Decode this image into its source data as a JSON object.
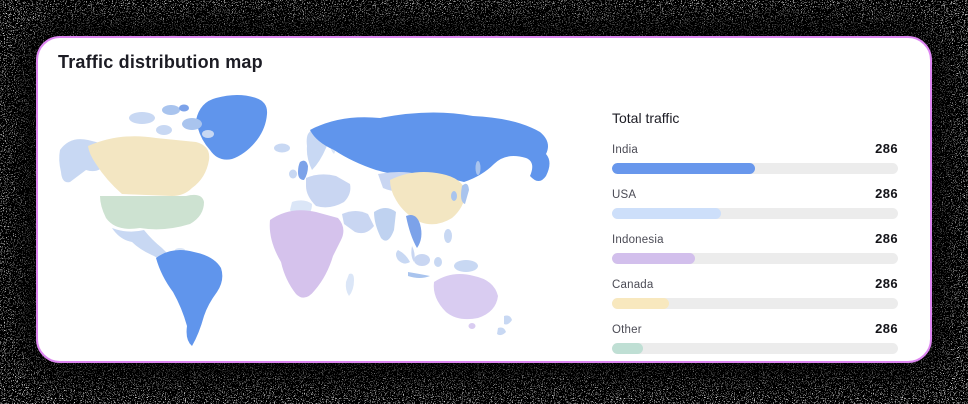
{
  "page": {
    "background": "#000000",
    "card_border": "#DD86F1"
  },
  "card": {
    "title": "Traffic distribution map"
  },
  "traffic": {
    "title": "Total traffic",
    "track_color": "#ECECEC",
    "rows": [
      {
        "label": "India",
        "value": "286",
        "percent": 50,
        "color": "#6897EC"
      },
      {
        "label": "USA",
        "value": "286",
        "percent": 38,
        "color": "#CDDFFA"
      },
      {
        "label": "Indonesia",
        "value": "286",
        "percent": 29,
        "color": "#D2BFEC"
      },
      {
        "label": "Canada",
        "value": "286",
        "percent": 20,
        "color": "#F8E8BE"
      },
      {
        "label": "Other",
        "value": "286",
        "percent": 11,
        "color": "#BFDFD4"
      }
    ]
  },
  "map": {
    "name": "world-traffic-choropleth",
    "region_colors": {
      "default": "#DBE6F7",
      "shade": "#C8D8F3",
      "mid": "#C9D6F2",
      "deep_shade": "#A9C4EE",
      "highlight_blue": "#6095EC",
      "highlight_soft": "#7CA2E9",
      "canada": "#F3E6C2",
      "usa": "#CDE2D1",
      "china": "#F3E6C2",
      "africa": "#D5C2EC",
      "australia": "#D9CCF1",
      "india": "#BFD2F0"
    }
  },
  "chart_data": {
    "type": "bar",
    "orientation": "horizontal",
    "title": "Total traffic",
    "categories": [
      "India",
      "USA",
      "Indonesia",
      "Canada",
      "Other"
    ],
    "values": [
      286,
      286,
      286,
      286,
      286
    ],
    "bar_fill_fractions": [
      0.5,
      0.38,
      0.29,
      0.2,
      0.11
    ],
    "bar_colors": [
      "#6897EC",
      "#CDDFFA",
      "#D2BFEC",
      "#F8E8BE",
      "#BFDFD4"
    ],
    "legend_position": "none",
    "grid": false,
    "companion": {
      "type": "choropleth-world-map",
      "highlighted_regions": {
        "blue": [
          "Russia",
          "Greenland",
          "South America"
        ],
        "cream": [
          "Canada",
          "China/Mongolia"
        ],
        "mint": [
          "USA"
        ],
        "lavender": [
          "Africa",
          "Australia"
        ]
      }
    }
  }
}
